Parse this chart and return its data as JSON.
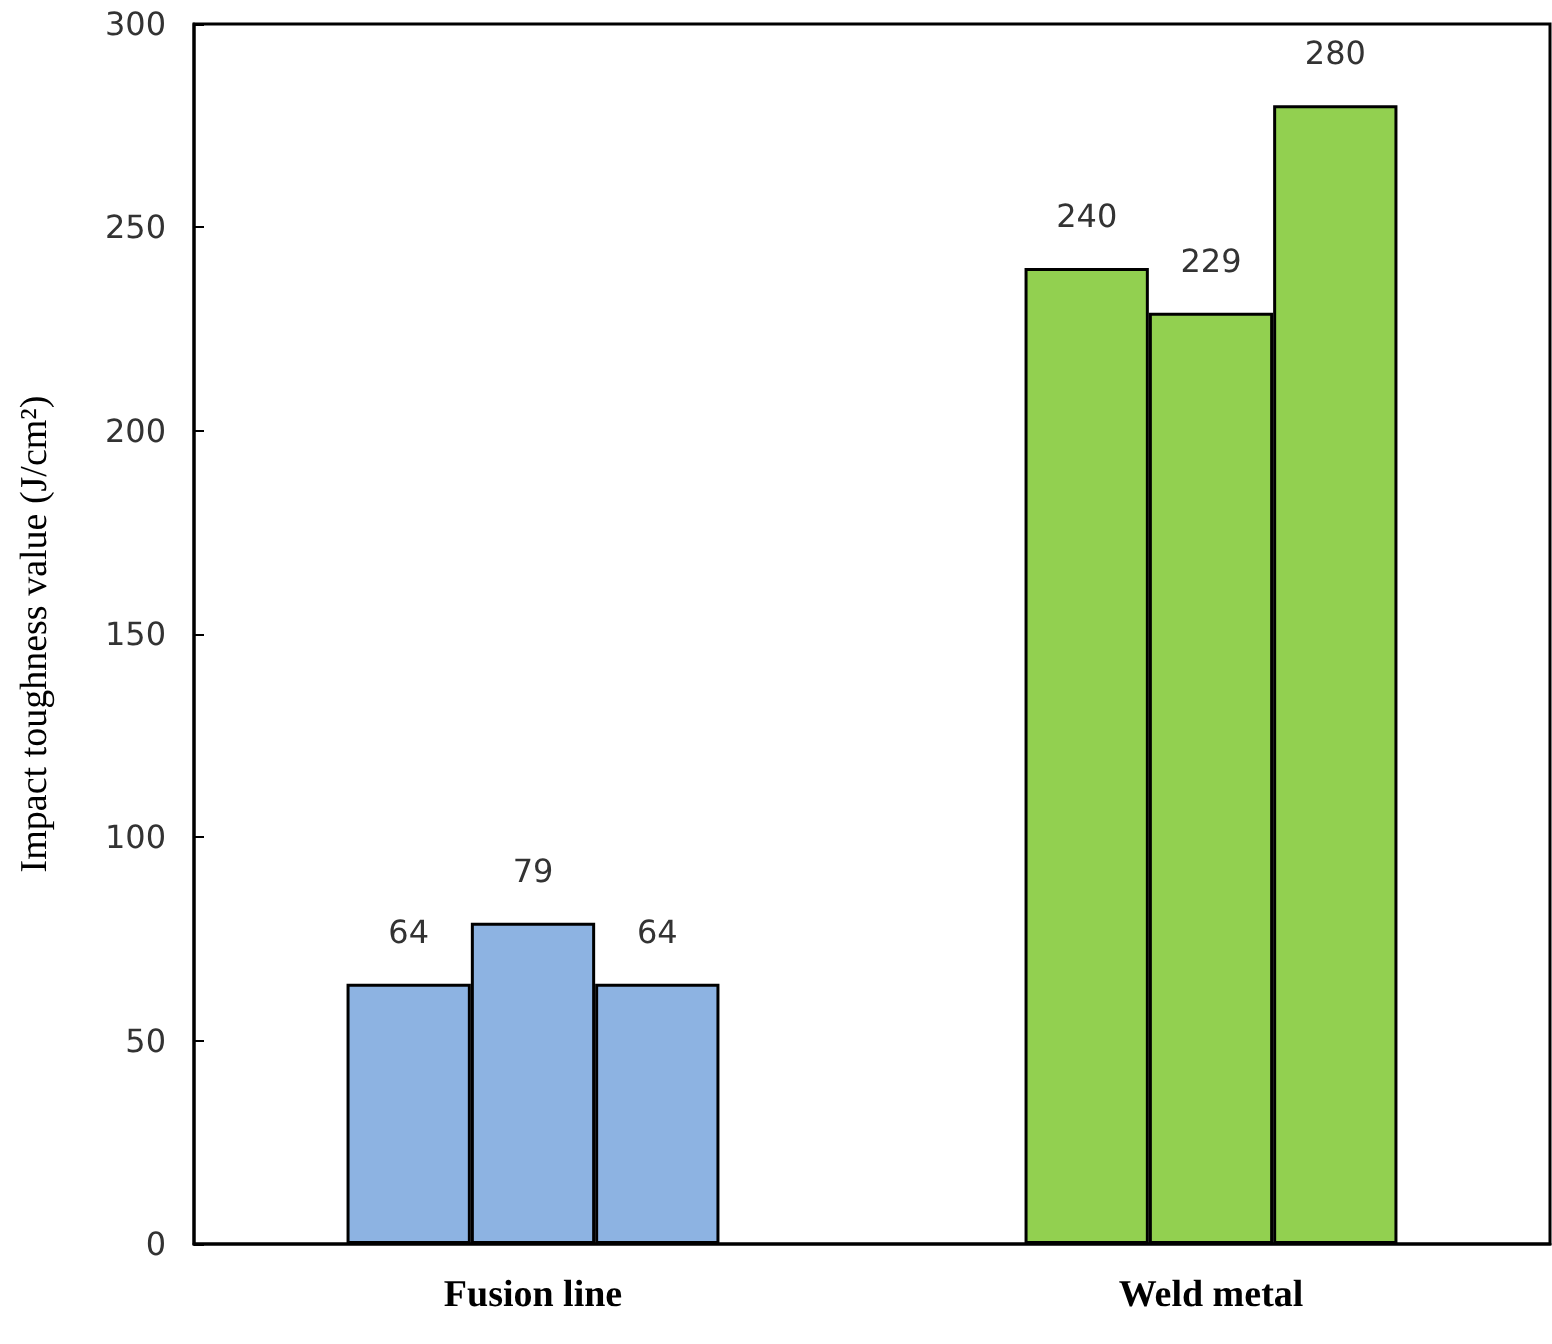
{
  "chart_data": {
    "type": "bar",
    "ylabel": "Impact toughness value (J/cm²)",
    "categories": [
      "Fusion line",
      "Weld metal"
    ],
    "series": [
      {
        "colors": [
          "#8db3e2",
          "#92d050"
        ],
        "values": [
          64,
          240
        ]
      },
      {
        "colors": [
          "#8db3e2",
          "#92d050"
        ],
        "values": [
          79,
          229
        ]
      },
      {
        "colors": [
          "#8db3e2",
          "#92d050"
        ],
        "values": [
          64,
          280
        ]
      }
    ],
    "ylim": [
      0,
      300
    ],
    "yticks": [
      0,
      50,
      100,
      150,
      200,
      250,
      300
    ],
    "data_labels": true
  }
}
